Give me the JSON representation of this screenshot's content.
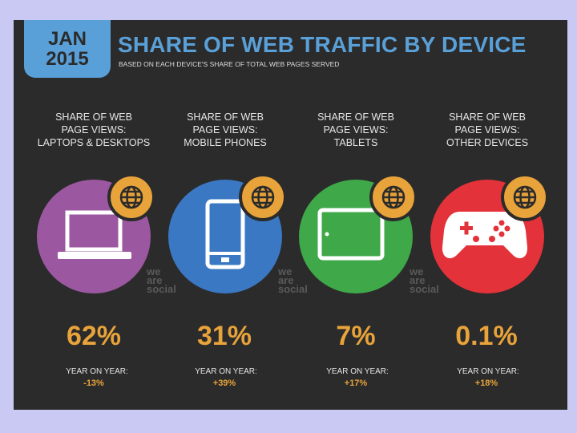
{
  "header": {
    "month": "JAN",
    "year": "2015",
    "title": "SHARE OF WEB TRAFFIC BY DEVICE",
    "subtitle": "BASED ON EACH DEVICE'S SHARE OF TOTAL WEB PAGES SERVED"
  },
  "brand": {
    "line1": "we",
    "line2": "are",
    "line3": "social"
  },
  "devices": [
    {
      "label1": "SHARE OF WEB",
      "label2": "PAGE VIEWS:",
      "label3": "LAPTOPS & DESKTOPS",
      "share": "62%",
      "yoy_label": "YEAR ON YEAR:",
      "yoy_value": "-13%",
      "color": "#9b57a0",
      "icon": "laptop-icon"
    },
    {
      "label1": "SHARE OF WEB",
      "label2": "PAGE VIEWS:",
      "label3": "MOBILE PHONES",
      "share": "31%",
      "yoy_label": "YEAR ON YEAR:",
      "yoy_value": "+39%",
      "color": "#3a78c3",
      "icon": "mobile-phone-icon"
    },
    {
      "label1": "SHARE OF WEB",
      "label2": "PAGE VIEWS:",
      "label3": "TABLETS",
      "share": "7%",
      "yoy_label": "YEAR ON YEAR:",
      "yoy_value": "+17%",
      "color": "#3fa849",
      "icon": "tablet-icon"
    },
    {
      "label1": "SHARE OF WEB",
      "label2": "PAGE VIEWS:",
      "label3": "OTHER DEVICES",
      "share": "0.1%",
      "yoy_label": "YEAR ON YEAR:",
      "yoy_value": "+18%",
      "color": "#e3323a",
      "icon": "game-controller-icon"
    }
  ],
  "colors": {
    "accent": "#e8a33a",
    "title_blue": "#5aa0d8",
    "background": "#2b2b2b"
  }
}
